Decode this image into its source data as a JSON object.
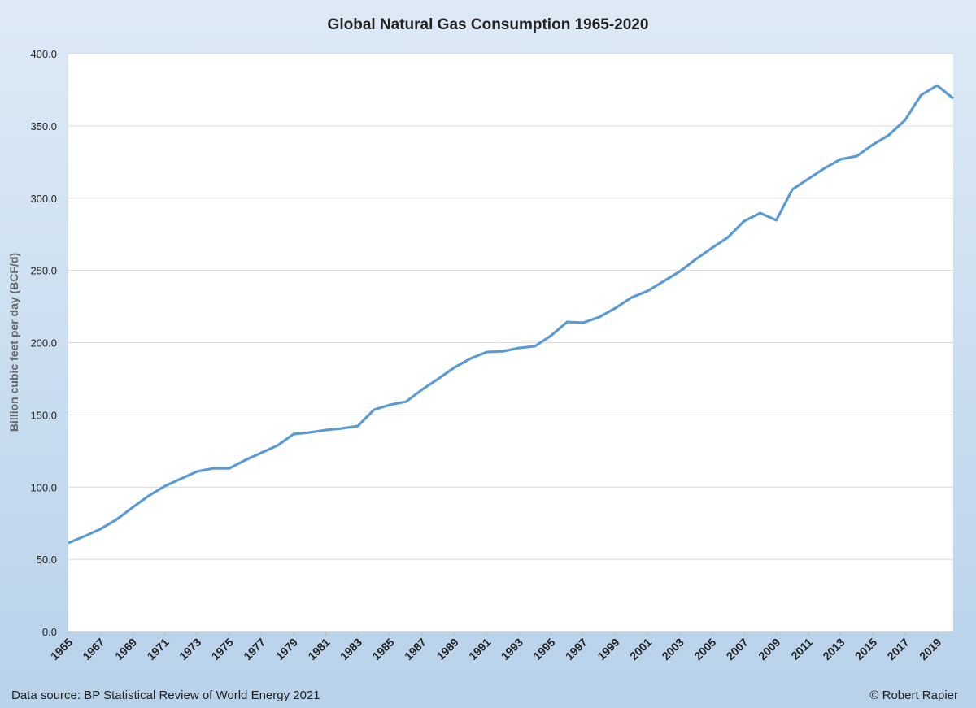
{
  "chart_data": {
    "type": "line",
    "title": "Global Natural Gas Consumption 1965-2020",
    "y_label": "Billion cubic feet per day (BCF/d)",
    "source": "Data source: BP Statistical Review of World Energy 2021",
    "credit": "© Robert Rapier",
    "x": [
      1965,
      1966,
      1967,
      1968,
      1969,
      1970,
      1971,
      1972,
      1973,
      1974,
      1975,
      1976,
      1977,
      1978,
      1979,
      1980,
      1981,
      1982,
      1983,
      1984,
      1985,
      1986,
      1987,
      1988,
      1989,
      1990,
      1991,
      1992,
      1993,
      1994,
      1995,
      1996,
      1997,
      1998,
      1999,
      2000,
      2001,
      2002,
      2003,
      2004,
      2005,
      2006,
      2007,
      2008,
      2009,
      2010,
      2011,
      2012,
      2013,
      2014,
      2015,
      2016,
      2017,
      2018,
      2019,
      2020
    ],
    "values": [
      61.3,
      66,
      71,
      77.6,
      86,
      94,
      100.7,
      105.8,
      110.8,
      113,
      113,
      118.7,
      123.8,
      128.8,
      136.7,
      137.8,
      139.5,
      140.6,
      142.3,
      153.6,
      157,
      159.2,
      167.6,
      175,
      182.8,
      189,
      193.5,
      194,
      196.3,
      197.5,
      204.8,
      214.3,
      213.8,
      217.7,
      223.9,
      231.2,
      235.7,
      242.5,
      249.2,
      257.7,
      265.5,
      272.9,
      284.1,
      289.7,
      284.7,
      306,
      313.4,
      320.7,
      326.9,
      329.1,
      337,
      343.7,
      353.9,
      371.3,
      378,
      369
    ],
    "color": "#5b9bd5",
    "xlim": [
      1965,
      2020
    ],
    "xticks": [
      1965,
      1967,
      1969,
      1971,
      1973,
      1975,
      1977,
      1979,
      1981,
      1983,
      1985,
      1987,
      1989,
      1991,
      1993,
      1995,
      1997,
      1999,
      2001,
      2003,
      2005,
      2007,
      2009,
      2011,
      2013,
      2015,
      2017,
      2019
    ],
    "ylim": [
      0,
      400
    ],
    "yticks": [
      {
        "value": 0,
        "label": "0.0"
      },
      {
        "value": 50,
        "label": "50.0"
      },
      {
        "value": 100,
        "label": "100.0"
      },
      {
        "value": 150,
        "label": "150.0"
      },
      {
        "value": 200,
        "label": "200.0"
      },
      {
        "value": 250,
        "label": "250.0"
      },
      {
        "value": 300,
        "label": "300.0"
      },
      {
        "value": 350,
        "label": "350.0"
      },
      {
        "value": 400,
        "label": "400.0"
      }
    ],
    "grid": true
  }
}
